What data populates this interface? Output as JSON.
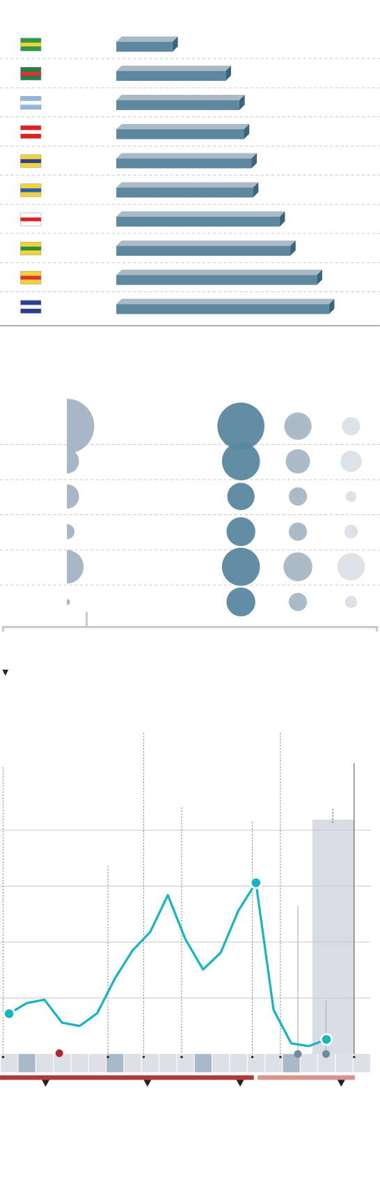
{
  "chart_data": [
    {
      "type": "bar",
      "orientation": "horizontal",
      "color": "#5e88a0",
      "categories": [
        null,
        null,
        null,
        null,
        null,
        null,
        null,
        null,
        null,
        null
      ],
      "values": [
        74,
        144,
        162,
        168,
        178,
        180,
        215,
        229,
        264,
        280
      ]
    },
    {
      "type": "bubble",
      "categories": [
        null,
        null,
        null,
        null,
        null,
        null
      ],
      "series": [
        {
          "color": "#a7b7c5",
          "values": [
            36,
            16,
            16,
            10,
            22,
            4
          ]
        },
        {
          "color": "#5b87a0",
          "values": [
            31,
            25,
            18,
            19,
            25,
            19
          ]
        },
        {
          "color": "#a7b7c5",
          "values": [
            18,
            16,
            12,
            12,
            19,
            12
          ]
        },
        {
          "color": "#dbe0e6",
          "values": [
            12,
            14,
            7,
            9,
            18,
            8
          ]
        }
      ]
    },
    {
      "type": "line",
      "categories": [
        null,
        null,
        null,
        null,
        null,
        null,
        null,
        null,
        null,
        null,
        null,
        null,
        null,
        null,
        null,
        null,
        null,
        null,
        null
      ],
      "series": [
        {
          "color": "#1ab3c0",
          "values": [
            0.72,
            0.91,
            0.97,
            0.56,
            0.5,
            0.73,
            1.35,
            1.85,
            2.18,
            2.84,
            2.05,
            1.51,
            1.81,
            2.56,
            3.06,
            0.79,
            0.19,
            0.14,
            0.26
          ]
        }
      ],
      "ylim": [
        0,
        5.7
      ],
      "yticks": [
        1,
        2,
        3,
        4
      ],
      "grid": true
    }
  ]
}
